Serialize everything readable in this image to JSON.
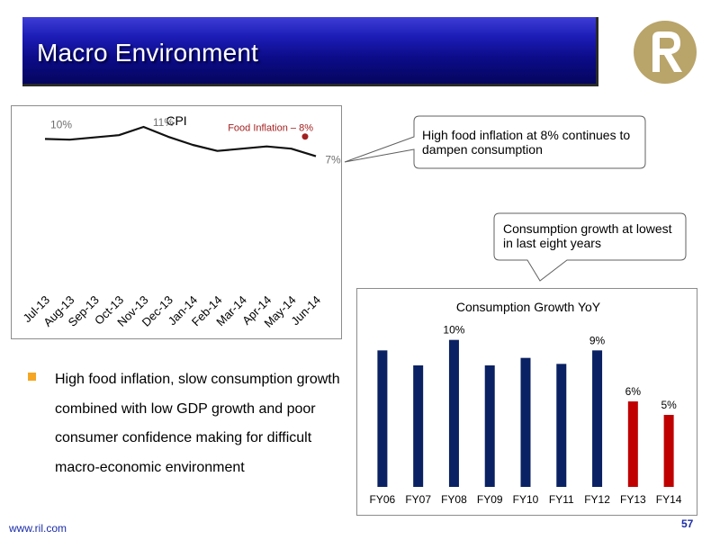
{
  "slide": {
    "title": "Macro Environment",
    "footer_url": "www.ril.com",
    "page_number": "57",
    "colors": {
      "banner": "#0c0c8a",
      "accent_bullet": "#f5a623",
      "logo": "#b9a46a",
      "cons_bar": "#0a2163",
      "cons_bar_highlight": "#c00000",
      "food_point": "#a31f1f",
      "footer": "#1a2ca8"
    }
  },
  "callouts": {
    "cpi": "High food inflation at 8% continues to dampen consumption",
    "consumption": "Consumption growth at lowest in last eight years"
  },
  "bullet": {
    "text": "High food inflation, slow consumption growth combined with low GDP growth and poor consumer confidence making for difficult macro-economic environment"
  },
  "chart_data": [
    {
      "type": "line",
      "title": "CPI",
      "categories": [
        "Jul-13",
        "Aug-13",
        "Sep-13",
        "Oct-13",
        "Nov-13",
        "Dec-13",
        "Jan-14",
        "Feb-14",
        "Mar-14",
        "Apr-14",
        "May-14",
        "Jun-14"
      ],
      "series": [
        {
          "values": [
            9.6,
            9.5,
            9.8,
            10.1,
            11.2,
            9.9,
            8.8,
            8.0,
            8.3,
            8.6,
            8.3,
            7.3
          ],
          "color": "#111111"
        }
      ],
      "data_labels": [
        {
          "index": 0,
          "text": "10%"
        },
        {
          "index": 4,
          "text": "11%"
        },
        {
          "index": 11,
          "text": "7%"
        }
      ],
      "annotation": {
        "text": "Food Inflation – 8%",
        "value": 8.0,
        "color": "#a31f1f"
      },
      "ylim": [
        -16,
        13
      ],
      "grid": false,
      "xlabel": "",
      "ylabel": ""
    },
    {
      "type": "bar",
      "title": "Consumption Growth YoY",
      "categories": [
        "FY06",
        "FY07",
        "FY08",
        "FY09",
        "FY10",
        "FY11",
        "FY12",
        "FY13",
        "FY14"
      ],
      "values": [
        9.1,
        8.1,
        9.8,
        8.1,
        8.6,
        8.2,
        9.1,
        5.7,
        4.8
      ],
      "highlight_indices": [
        7,
        8
      ],
      "data_labels": [
        {
          "index": 2,
          "text": "10%"
        },
        {
          "index": 6,
          "text": "9%"
        },
        {
          "index": 7,
          "text": "6%"
        },
        {
          "index": 8,
          "text": "5%"
        }
      ],
      "ylim": [
        0,
        10.5
      ],
      "grid": false,
      "xlabel": "",
      "ylabel": ""
    }
  ]
}
